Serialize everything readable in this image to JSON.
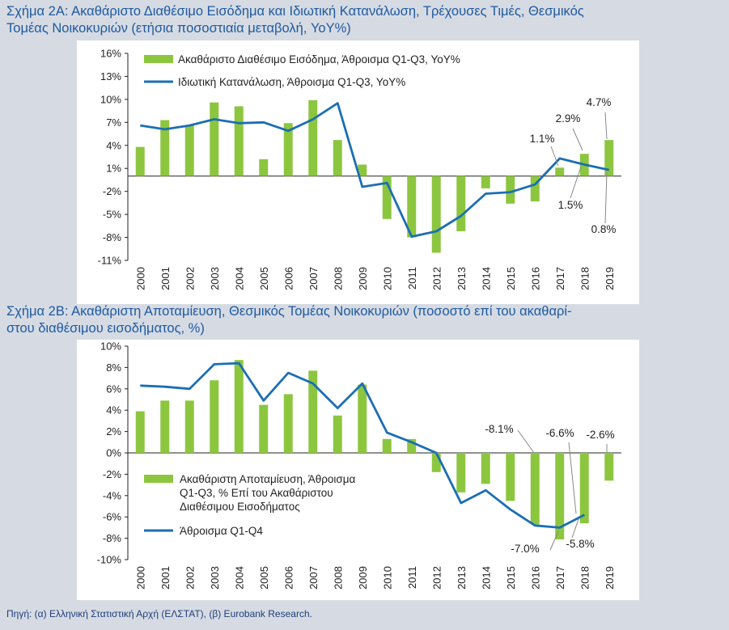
{
  "titles": {
    "chart1_line1": "Σχήμα 2Α: Ακαθάριστο Διαθέσιμο Εισόδημα και Ιδιωτική Κατανάλωση, Τρέχουσες Τιμές, Θεσμικός",
    "chart1_line2": "Τομέας Νοικοκυριών (ετήσια ποσοστιαία μεταβολή, YoY%)",
    "chart2_line1": "Σχήμα 2Β: Ακαθάριστη Αποταμίευση, Θεσμικός Τομέας Νοικοκυριών (ποσοστό επί του ακαθαρί-",
    "chart2_line2": "στου διαθέσιμου εισοδήματος, %)"
  },
  "source": "Πηγή: (α) Ελληνική Στατιστική Αρχή (ΕΛΣΤΑΤ), (β) Eurobank Research.",
  "colors": {
    "bar": "#8cc63f",
    "line": "#1b6eb5",
    "axis": "#222222",
    "title": "#1f5aa0"
  },
  "chart_data": [
    {
      "type": "bar",
      "title": "Σχήμα 2Α",
      "categories": [
        "2000",
        "2001",
        "2002",
        "2003",
        "2004",
        "2005",
        "2006",
        "2007",
        "2008",
        "2009",
        "2010",
        "2011",
        "2012",
        "2013",
        "2014",
        "2015",
        "2016",
        "2017",
        "2018",
        "2019"
      ],
      "ylim": [
        -11,
        16
      ],
      "yticks": [
        -11,
        -8,
        -5,
        -2,
        1,
        4,
        7,
        10,
        13,
        16
      ],
      "ytick_labels": [
        "-11%",
        "-8%",
        "-5%",
        "-2%",
        "1%",
        "4%",
        "7%",
        "10%",
        "13%",
        "16%"
      ],
      "series": [
        {
          "name": "Ακαθάριστο Διαθέσιμο Εισόδημα, Άθροισμα Q1-Q3, YoY%",
          "kind": "bar",
          "values": [
            3.8,
            7.3,
            6.6,
            9.6,
            9.1,
            2.2,
            6.9,
            9.9,
            4.7,
            1.5,
            -5.6,
            -8.0,
            -10.0,
            -7.2,
            -1.6,
            -3.6,
            -3.3,
            1.1,
            2.9,
            4.7
          ]
        },
        {
          "name": "Ιδιωτική Κατανάλωση, Άθροισμα Q1-Q3, YoY%",
          "kind": "line",
          "values": [
            6.6,
            6.1,
            6.6,
            7.4,
            6.9,
            7.0,
            5.9,
            7.4,
            9.5,
            -1.4,
            -0.9,
            -7.9,
            -7.2,
            -5.2,
            -2.3,
            -2.1,
            -1.1,
            2.3,
            1.5,
            0.8
          ]
        }
      ],
      "annotations": [
        {
          "text": "4.7%",
          "category": "2019"
        },
        {
          "text": "2.9%",
          "category": "2018"
        },
        {
          "text": "1.1%",
          "category": "2017"
        },
        {
          "text": "1.5%",
          "category": "2018"
        },
        {
          "text": "0.8%",
          "category": "2019"
        }
      ]
    },
    {
      "type": "bar",
      "title": "Σχήμα 2Β",
      "categories": [
        "2000",
        "2001",
        "2002",
        "2003",
        "2004",
        "2005",
        "2006",
        "2007",
        "2008",
        "2009",
        "2010",
        "2011",
        "2012",
        "2013",
        "2014",
        "2015",
        "2016",
        "2017",
        "2018",
        "2019"
      ],
      "ylim": [
        -10,
        10
      ],
      "yticks": [
        -10,
        -8,
        -6,
        -4,
        -2,
        0,
        2,
        4,
        6,
        8,
        10
      ],
      "ytick_labels": [
        "-10%",
        "-8%",
        "-6%",
        "-4%",
        "-2%",
        "0%",
        "2%",
        "4%",
        "6%",
        "8%",
        "10%"
      ],
      "series": [
        {
          "name": "Ακαθάριστη Αποταμίευση, Άθροισμα Q1-Q3, % Επί του Ακαθάριστου Διαθέσιμου Εισοδήματος",
          "kind": "bar",
          "legend_lines": [
            "Ακαθάριστη Αποταμίευση, Άθροισμα",
            "Q1-Q3, % Επί του Ακαθάριστου",
            "Διαθέσιμου Εισοδήματος"
          ],
          "values": [
            3.9,
            4.9,
            4.9,
            6.8,
            8.7,
            4.5,
            5.5,
            7.7,
            3.5,
            6.4,
            1.3,
            1.3,
            -1.8,
            -3.7,
            -2.9,
            -4.5,
            -6.7,
            -8.1,
            -6.6,
            -2.6
          ]
        },
        {
          "name": "Άθροισμα Q1-Q4",
          "kind": "line",
          "values": [
            6.3,
            6.2,
            6.0,
            8.3,
            8.4,
            4.9,
            7.5,
            6.5,
            4.2,
            6.5,
            1.9,
            1.0,
            0.0,
            -4.7,
            -3.5,
            -5.3,
            -6.8,
            -7.0,
            -5.8,
            null
          ]
        }
      ],
      "annotations": [
        {
          "text": "-8.1%",
          "category": "2017"
        },
        {
          "text": "-6.6%",
          "category": "2018"
        },
        {
          "text": "-2.6%",
          "category": "2019"
        },
        {
          "text": "-7.0%",
          "category": "2017"
        },
        {
          "text": "-5.8%",
          "category": "2018"
        }
      ]
    }
  ]
}
